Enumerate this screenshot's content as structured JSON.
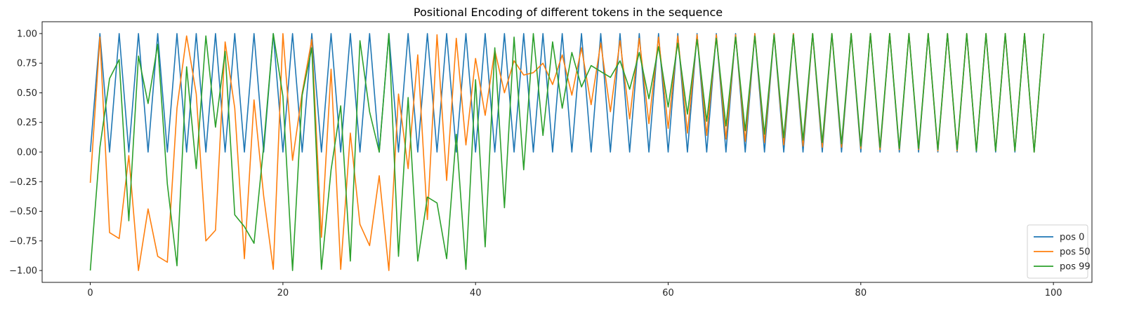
{
  "chart_data": {
    "type": "line",
    "title": "Positional Encoding of different tokens in the sequence",
    "xlabel": "",
    "ylabel": "",
    "xlim": [
      -5,
      104
    ],
    "ylim": [
      -1.1,
      1.1
    ],
    "xticks": [
      0,
      20,
      40,
      60,
      80,
      100
    ],
    "xtick_labels": [
      "0",
      "20",
      "40",
      "60",
      "80",
      "100"
    ],
    "yticks": [
      1.0,
      0.75,
      0.5,
      0.25,
      0.0,
      -0.25,
      -0.5,
      -0.75,
      -1.0
    ],
    "ytick_labels": [
      "1.00",
      "0.75",
      "0.50",
      "0.25",
      "0.00",
      "−0.25",
      "−0.50",
      "−0.75",
      "−1.00"
    ],
    "grid": false,
    "legend_position": "lower-right",
    "x": [
      0,
      1,
      2,
      3,
      4,
      5,
      6,
      7,
      8,
      9,
      10,
      11,
      12,
      13,
      14,
      15,
      16,
      17,
      18,
      19,
      20,
      21,
      22,
      23,
      24,
      25,
      26,
      27,
      28,
      29,
      30,
      31,
      32,
      33,
      34,
      35,
      36,
      37,
      38,
      39,
      40,
      41,
      42,
      43,
      44,
      45,
      46,
      47,
      48,
      49,
      50,
      51,
      52,
      53,
      54,
      55,
      56,
      57,
      58,
      59,
      60,
      61,
      62,
      63,
      64,
      65,
      66,
      67,
      68,
      69,
      70,
      71,
      72,
      73,
      74,
      75,
      76,
      77,
      78,
      79,
      80,
      81,
      82,
      83,
      84,
      85,
      86,
      87,
      88,
      89,
      90,
      91,
      92,
      93,
      94,
      95,
      96,
      97,
      98,
      99
    ],
    "series": [
      {
        "name": "pos 0",
        "color": "#1f77b4",
        "values": [
          0,
          1,
          0,
          1,
          0,
          1,
          0,
          1,
          0,
          1,
          0,
          1,
          0,
          1,
          0,
          1,
          0,
          1,
          0,
          1,
          0,
          1,
          0,
          1,
          0,
          1,
          0,
          1,
          0,
          1,
          0,
          1,
          0,
          1,
          0,
          1,
          0,
          1,
          0,
          1,
          0,
          1,
          0,
          1,
          0,
          1,
          0,
          1,
          0,
          1,
          0,
          1,
          0,
          1,
          0,
          1,
          0,
          1,
          0,
          1,
          0,
          1,
          0,
          1,
          0,
          1,
          0,
          1,
          0,
          1,
          0,
          1,
          0,
          1,
          0,
          1,
          0,
          1,
          0,
          1,
          0,
          1,
          0,
          1,
          0,
          1,
          0,
          1,
          0,
          1,
          0,
          1,
          0,
          1,
          0,
          1,
          0,
          1,
          0,
          1
        ]
      },
      {
        "name": "pos 50",
        "color": "#ff7f0e",
        "values": [
          -0.26,
          0.97,
          -0.68,
          -0.73,
          -0.03,
          -1.0,
          -0.48,
          -0.88,
          -0.93,
          0.37,
          0.98,
          0.49,
          -0.75,
          -0.66,
          0.93,
          0.37,
          -0.9,
          0.44,
          -0.37,
          -0.99,
          1.0,
          -0.07,
          0.5,
          0.95,
          -0.72,
          0.7,
          -0.99,
          0.16,
          -0.61,
          -0.79,
          -0.2,
          -1.0,
          0.49,
          -0.14,
          0.82,
          -0.57,
          0.99,
          -0.24,
          0.96,
          0.06,
          0.79,
          0.31,
          0.86,
          0.5,
          0.77,
          0.65,
          0.67,
          0.75,
          0.57,
          0.82,
          0.48,
          0.88,
          0.4,
          0.92,
          0.34,
          0.94,
          0.28,
          0.96,
          0.24,
          0.97,
          0.2,
          0.98,
          0.16,
          0.99,
          0.14,
          0.99,
          0.11,
          0.99,
          0.09,
          1.0,
          0.08,
          1.0,
          0.06,
          1.0,
          0.05,
          1.0,
          0.04,
          1.0,
          0.04,
          1.0,
          0.03,
          1.0,
          0.02,
          1.0,
          0.02,
          1.0,
          0.02,
          1.0,
          0.01,
          1.0,
          0.01,
          1.0,
          0.01,
          1.0,
          0.01,
          1.0,
          0.01,
          1.0,
          0.0,
          1.0
        ]
      },
      {
        "name": "pos 99",
        "color": "#2ca02c",
        "values": [
          -1.0,
          0.04,
          0.62,
          0.78,
          -0.58,
          0.81,
          0.41,
          0.91,
          -0.27,
          -0.96,
          0.72,
          -0.14,
          0.98,
          0.21,
          0.85,
          -0.53,
          -0.63,
          -0.77,
          0.05,
          1.0,
          0.47,
          -1.0,
          0.48,
          0.88,
          -0.99,
          -0.15,
          0.39,
          -0.92,
          0.94,
          0.34,
          0.0,
          1.0,
          -0.88,
          0.46,
          -0.92,
          -0.38,
          -0.43,
          -0.9,
          0.15,
          -0.99,
          0.61,
          -0.8,
          0.88,
          -0.47,
          0.97,
          -0.15,
          1.0,
          0.14,
          0.93,
          0.37,
          0.84,
          0.55,
          0.73,
          0.68,
          0.63,
          0.77,
          0.53,
          0.84,
          0.45,
          0.89,
          0.38,
          0.92,
          0.32,
          0.95,
          0.26,
          0.96,
          0.22,
          0.97,
          0.18,
          0.98,
          0.15,
          0.99,
          0.12,
          0.99,
          0.1,
          1.0,
          0.08,
          1.0,
          0.07,
          1.0,
          0.05,
          1.0,
          0.04,
          1.0,
          0.03,
          1.0,
          0.03,
          1.0,
          0.02,
          1.0,
          0.02,
          1.0,
          0.01,
          1.0,
          0.01,
          1.0,
          0.01,
          1.0,
          0.0,
          1.0
        ]
      }
    ]
  }
}
